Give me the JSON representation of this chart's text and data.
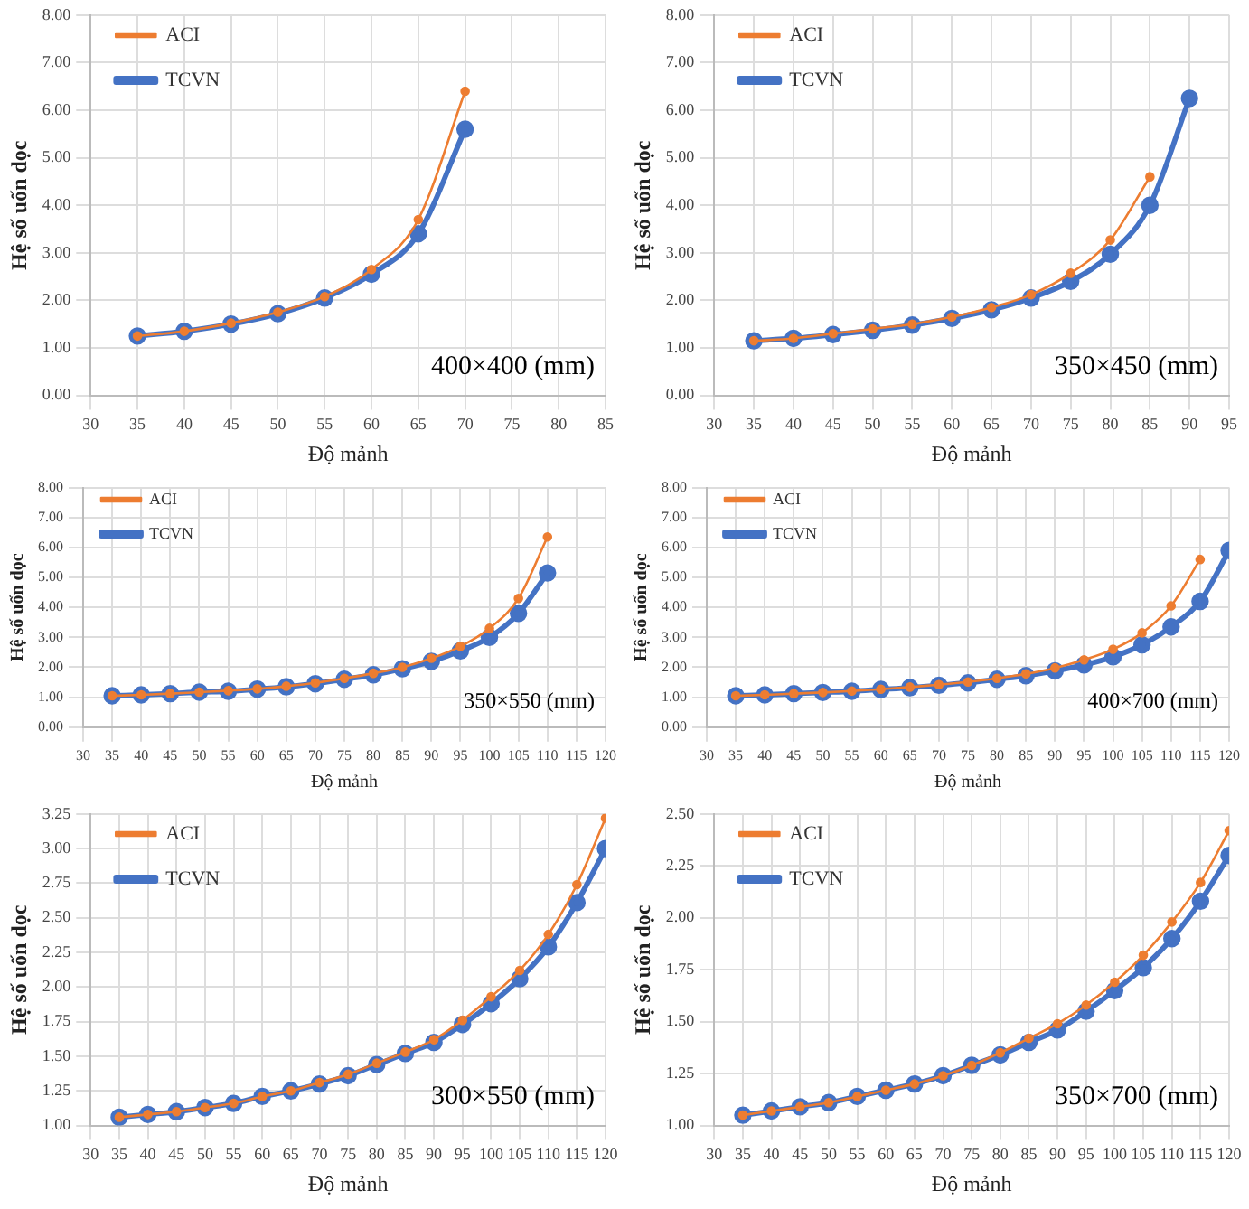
{
  "chart_data": [
    {
      "type": "line",
      "xlabel": "Độ mảnh",
      "ylabel": "Hệ số uốn dọc",
      "annotations": [
        "400×400 (mm)"
      ],
      "grid": true,
      "legend": "top left",
      "marker": "circle",
      "line_style": "solid",
      "x": [
        35,
        40,
        45,
        50,
        55,
        60,
        65,
        70
      ],
      "xlim": [
        30,
        85
      ],
      "xticks": [
        30,
        35,
        40,
        45,
        50,
        55,
        60,
        65,
        70,
        75,
        80,
        85
      ],
      "ylim": [
        0,
        8
      ],
      "yticks": [
        {
          "value": 0,
          "label": "0.00"
        },
        {
          "value": 1,
          "label": "1.00"
        },
        {
          "value": 2,
          "label": "2.00"
        },
        {
          "value": 3,
          "label": "3.00"
        },
        {
          "value": 4,
          "label": "4.00"
        },
        {
          "value": 5,
          "label": "5.00"
        },
        {
          "value": 6,
          "label": "6.00"
        },
        {
          "value": 7,
          "label": "7.00"
        },
        {
          "value": 8,
          "label": "8.00"
        }
      ],
      "series": [
        {
          "name": "TCVN",
          "color": "#4472c4",
          "values": [
            1.25,
            1.35,
            1.5,
            1.72,
            2.05,
            2.55,
            3.4,
            5.6
          ]
        },
        {
          "name": "ACI",
          "color": "#ed7d31",
          "values": [
            1.25,
            1.35,
            1.52,
            1.75,
            2.08,
            2.65,
            3.7,
            6.4
          ]
        }
      ]
    },
    {
      "type": "line",
      "xlabel": "Độ mảnh",
      "ylabel": "Hệ số uốn dọc",
      "annotations": [
        "350×450 (mm)"
      ],
      "grid": true,
      "legend": "top left",
      "marker": "circle",
      "line_style": "solid",
      "x": [
        35,
        40,
        45,
        50,
        55,
        60,
        65,
        70,
        75,
        80,
        85,
        90
      ],
      "xlim": [
        30,
        95
      ],
      "xticks": [
        30,
        35,
        40,
        45,
        50,
        55,
        60,
        65,
        70,
        75,
        80,
        85,
        90,
        95
      ],
      "ylim": [
        0,
        8
      ],
      "yticks": [
        {
          "value": 0,
          "label": "0.00"
        },
        {
          "value": 1,
          "label": "1.00"
        },
        {
          "value": 2,
          "label": "2.00"
        },
        {
          "value": 3,
          "label": "3.00"
        },
        {
          "value": 4,
          "label": "4.00"
        },
        {
          "value": 5,
          "label": "5.00"
        },
        {
          "value": 6,
          "label": "6.00"
        },
        {
          "value": 7,
          "label": "7.00"
        },
        {
          "value": 8,
          "label": "8.00"
        }
      ],
      "series": [
        {
          "name": "TCVN",
          "color": "#4472c4",
          "values": [
            1.15,
            1.2,
            1.28,
            1.37,
            1.48,
            1.62,
            1.8,
            2.05,
            2.4,
            2.97,
            4.0,
            6.25
          ]
        },
        {
          "name": "ACI",
          "color": "#ed7d31",
          "values": [
            1.15,
            1.2,
            1.3,
            1.4,
            1.5,
            1.65,
            1.85,
            2.12,
            2.57,
            3.27,
            4.6,
            null
          ]
        }
      ]
    },
    {
      "type": "line",
      "xlabel": "Độ mảnh",
      "ylabel": "Hệ số uốn dọc",
      "annotations": [
        "350×550 (mm)"
      ],
      "grid": true,
      "legend": "top left",
      "marker": "circle",
      "line_style": "solid",
      "x": [
        35,
        40,
        45,
        50,
        55,
        60,
        65,
        70,
        75,
        80,
        85,
        90,
        95,
        100,
        105,
        110
      ],
      "xlim": [
        30,
        120
      ],
      "xticks": [
        30,
        35,
        40,
        45,
        50,
        55,
        60,
        65,
        70,
        75,
        80,
        85,
        90,
        95,
        100,
        105,
        110,
        115,
        120
      ],
      "ylim": [
        0,
        8
      ],
      "yticks": [
        {
          "value": 0,
          "label": "0.00"
        },
        {
          "value": 1,
          "label": "1.00"
        },
        {
          "value": 2,
          "label": "2.00"
        },
        {
          "value": 3,
          "label": "3.00"
        },
        {
          "value": 4,
          "label": "4.00"
        },
        {
          "value": 5,
          "label": "5.00"
        },
        {
          "value": 6,
          "label": "6.00"
        },
        {
          "value": 7,
          "label": "7.00"
        },
        {
          "value": 8,
          "label": "8.00"
        }
      ],
      "series": [
        {
          "name": "TCVN",
          "color": "#4472c4",
          "values": [
            1.05,
            1.08,
            1.12,
            1.17,
            1.2,
            1.27,
            1.35,
            1.45,
            1.6,
            1.75,
            1.95,
            2.2,
            2.55,
            3.0,
            3.8,
            5.15
          ]
        },
        {
          "name": "ACI",
          "color": "#ed7d31",
          "values": [
            1.05,
            1.08,
            1.12,
            1.17,
            1.22,
            1.28,
            1.37,
            1.48,
            1.63,
            1.8,
            2.0,
            2.3,
            2.7,
            3.3,
            4.3,
            6.35
          ]
        }
      ]
    },
    {
      "type": "line",
      "xlabel": "Độ mảnh",
      "ylabel": "Hệ số uốn dọc",
      "annotations": [
        "400×700 (mm)"
      ],
      "grid": true,
      "legend": "top left",
      "marker": "circle",
      "line_style": "solid",
      "x": [
        35,
        40,
        45,
        50,
        55,
        60,
        65,
        70,
        75,
        80,
        85,
        90,
        95,
        100,
        105,
        110,
        115,
        120
      ],
      "xlim": [
        30,
        120
      ],
      "xticks": [
        30,
        35,
        40,
        45,
        50,
        55,
        60,
        65,
        70,
        75,
        80,
        85,
        90,
        95,
        100,
        105,
        110,
        115,
        120
      ],
      "ylim": [
        0,
        8
      ],
      "yticks": [
        {
          "value": 0,
          "label": "0.00"
        },
        {
          "value": 1,
          "label": "1.00"
        },
        {
          "value": 2,
          "label": "2.00"
        },
        {
          "value": 3,
          "label": "3.00"
        },
        {
          "value": 4,
          "label": "4.00"
        },
        {
          "value": 5,
          "label": "5.00"
        },
        {
          "value": 6,
          "label": "6.00"
        },
        {
          "value": 7,
          "label": "7.00"
        },
        {
          "value": 8,
          "label": "8.00"
        }
      ],
      "series": [
        {
          "name": "TCVN",
          "color": "#4472c4",
          "values": [
            1.05,
            1.08,
            1.12,
            1.16,
            1.2,
            1.26,
            1.32,
            1.4,
            1.48,
            1.6,
            1.72,
            1.88,
            2.08,
            2.35,
            2.75,
            3.35,
            4.2,
            5.9
          ]
        },
        {
          "name": "ACI",
          "color": "#ed7d31",
          "values": [
            1.05,
            1.08,
            1.12,
            1.16,
            1.21,
            1.27,
            1.34,
            1.42,
            1.51,
            1.63,
            1.78,
            1.98,
            2.25,
            2.6,
            3.15,
            4.05,
            5.6,
            null
          ]
        }
      ]
    },
    {
      "type": "line",
      "xlabel": "Độ mảnh",
      "ylabel": "Hệ số uốn dọc",
      "annotations": [
        "300×550 (mm)"
      ],
      "grid": true,
      "legend": "top left",
      "marker": "circle",
      "line_style": "solid",
      "x": [
        35,
        40,
        45,
        50,
        55,
        60,
        65,
        70,
        75,
        80,
        85,
        90,
        95,
        100,
        105,
        110,
        115,
        120
      ],
      "xlim": [
        30,
        120
      ],
      "xticks": [
        30,
        35,
        40,
        45,
        50,
        55,
        60,
        65,
        70,
        75,
        80,
        85,
        90,
        95,
        100,
        105,
        110,
        115,
        120
      ],
      "ylim": [
        1,
        3.25
      ],
      "yticks": [
        {
          "value": 1,
          "label": "1.00"
        },
        {
          "value": 1.25,
          "label": "1.25"
        },
        {
          "value": 1.5,
          "label": "1.50"
        },
        {
          "value": 1.75,
          "label": "1.75"
        },
        {
          "value": 2,
          "label": "2.00"
        },
        {
          "value": 2.25,
          "label": "2.25"
        },
        {
          "value": 2.5,
          "label": "2.50"
        },
        {
          "value": 2.75,
          "label": "2.75"
        },
        {
          "value": 3,
          "label": "3.00"
        },
        {
          "value": 3.25,
          "label": "3.25"
        }
      ],
      "series": [
        {
          "name": "TCVN",
          "color": "#4472c4",
          "values": [
            1.06,
            1.08,
            1.1,
            1.13,
            1.16,
            1.21,
            1.25,
            1.3,
            1.36,
            1.44,
            1.52,
            1.6,
            1.73,
            1.88,
            2.06,
            2.29,
            2.61,
            3.0
          ]
        },
        {
          "name": "ACI",
          "color": "#ed7d31",
          "values": [
            1.06,
            1.08,
            1.1,
            1.13,
            1.16,
            1.21,
            1.25,
            1.31,
            1.37,
            1.45,
            1.53,
            1.62,
            1.76,
            1.93,
            2.12,
            2.38,
            2.74,
            3.22
          ]
        }
      ]
    },
    {
      "type": "line",
      "xlabel": "Độ mảnh",
      "ylabel": "Hệ số uốn dọc",
      "annotations": [
        "350×700 (mm)"
      ],
      "grid": true,
      "legend": "top left",
      "marker": "circle",
      "line_style": "solid",
      "x": [
        35,
        40,
        45,
        50,
        55,
        60,
        65,
        70,
        75,
        80,
        85,
        90,
        95,
        100,
        105,
        110,
        115,
        120
      ],
      "xlim": [
        30,
        120
      ],
      "xticks": [
        30,
        35,
        40,
        45,
        50,
        55,
        60,
        65,
        70,
        75,
        80,
        85,
        90,
        95,
        100,
        105,
        110,
        115,
        120
      ],
      "ylim": [
        1,
        2.5
      ],
      "yticks": [
        {
          "value": 1,
          "label": "1.00"
        },
        {
          "value": 1.25,
          "label": "1.25"
        },
        {
          "value": 1.5,
          "label": "1.50"
        },
        {
          "value": 1.75,
          "label": "1.75"
        },
        {
          "value": 2,
          "label": "2.00"
        },
        {
          "value": 2.25,
          "label": "2.25"
        },
        {
          "value": 2.5,
          "label": "2.50"
        }
      ],
      "series": [
        {
          "name": "TCVN",
          "color": "#4472c4",
          "values": [
            1.05,
            1.07,
            1.09,
            1.11,
            1.14,
            1.17,
            1.2,
            1.24,
            1.29,
            1.34,
            1.4,
            1.46,
            1.55,
            1.65,
            1.76,
            1.9,
            2.08,
            2.3
          ]
        },
        {
          "name": "ACI",
          "color": "#ed7d31",
          "values": [
            1.05,
            1.07,
            1.09,
            1.11,
            1.14,
            1.17,
            1.2,
            1.24,
            1.29,
            1.35,
            1.42,
            1.49,
            1.58,
            1.69,
            1.82,
            1.98,
            2.17,
            2.42
          ]
        }
      ]
    }
  ]
}
